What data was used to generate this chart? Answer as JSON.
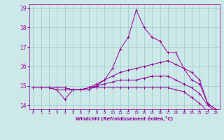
{
  "xlabel": "Windchill (Refroidissement éolien,°C)",
  "bg_color": "#cce8e8",
  "line_color": "#990099",
  "grid_color": "#99cccc",
  "x_values": [
    0,
    1,
    2,
    3,
    4,
    5,
    6,
    7,
    8,
    9,
    10,
    11,
    12,
    13,
    14,
    15,
    16,
    17,
    18,
    19,
    20,
    21,
    22,
    23
  ],
  "series": [
    [
      14.9,
      14.9,
      14.9,
      14.8,
      14.3,
      14.8,
      14.8,
      14.8,
      15.0,
      15.3,
      15.9,
      16.9,
      17.5,
      18.9,
      18.0,
      17.5,
      17.3,
      16.7,
      16.7,
      15.9,
      15.3,
      15.1,
      14.1,
      13.8
    ],
    [
      14.9,
      14.9,
      14.9,
      14.8,
      14.8,
      14.8,
      14.8,
      14.9,
      15.1,
      15.3,
      15.5,
      15.7,
      15.8,
      15.9,
      16.0,
      16.1,
      16.2,
      16.3,
      16.1,
      15.9,
      15.7,
      15.3,
      14.1,
      13.8
    ],
    [
      14.9,
      14.9,
      14.9,
      14.9,
      14.9,
      14.8,
      14.8,
      14.9,
      15.0,
      15.1,
      15.2,
      15.3,
      15.3,
      15.3,
      15.4,
      15.5,
      15.5,
      15.5,
      15.3,
      15.1,
      14.9,
      14.6,
      14.0,
      13.7
    ],
    [
      14.9,
      14.9,
      14.9,
      14.9,
      14.9,
      14.8,
      14.8,
      14.9,
      14.9,
      14.9,
      14.9,
      14.9,
      14.9,
      14.9,
      14.9,
      14.9,
      14.9,
      14.9,
      14.8,
      14.7,
      14.4,
      14.1,
      13.7,
      13.5
    ]
  ],
  "ylim": [
    13.8,
    19.2
  ],
  "xlim": [
    -0.5,
    23.5
  ],
  "yticks": [
    14,
    15,
    16,
    17,
    18,
    19
  ],
  "xticks": [
    0,
    1,
    2,
    3,
    4,
    5,
    6,
    7,
    8,
    9,
    10,
    11,
    12,
    13,
    14,
    15,
    16,
    17,
    18,
    19,
    20,
    21,
    22,
    23
  ]
}
